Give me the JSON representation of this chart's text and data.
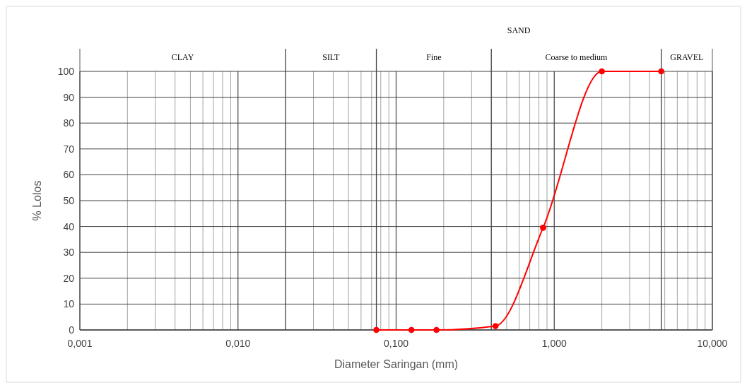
{
  "chart_data": {
    "type": "line",
    "xlabel": "Diameter Saringan (mm)",
    "ylabel": "% Lolos",
    "x": [
      0.075,
      0.125,
      0.18,
      0.425,
      0.85,
      2,
      4.75
    ],
    "series": [
      {
        "color": "#ff0000",
        "values": [
          0,
          0,
          0,
          1.5,
          39.5,
          100,
          100
        ]
      }
    ],
    "log": "x",
    "xlim": [
      0.001,
      10
    ],
    "xticks": [
      {
        "value": 0.001,
        "label": "0,001"
      },
      {
        "value": 0.01,
        "label": "0,010"
      },
      {
        "value": 0.1,
        "label": "0,100"
      },
      {
        "value": 1,
        "label": "1,000"
      },
      {
        "value": 10,
        "label": "10,000"
      }
    ],
    "ylim": [
      0,
      100
    ],
    "yticks": [
      0,
      10,
      20,
      30,
      40,
      50,
      60,
      70,
      80,
      90,
      100
    ],
    "grid": true,
    "marker": "circle",
    "line_style": "solid",
    "ref_lines": [
      {
        "axis": "x",
        "value": 0.02
      },
      {
        "axis": "x",
        "value": 0.075
      },
      {
        "axis": "x",
        "value": 0.4
      },
      {
        "axis": "x",
        "value": 4.75
      }
    ],
    "annotations": [
      "CLAY",
      "SILT",
      "Fine",
      "Coarse to medium",
      "GRAVEL",
      "SAND"
    ]
  }
}
